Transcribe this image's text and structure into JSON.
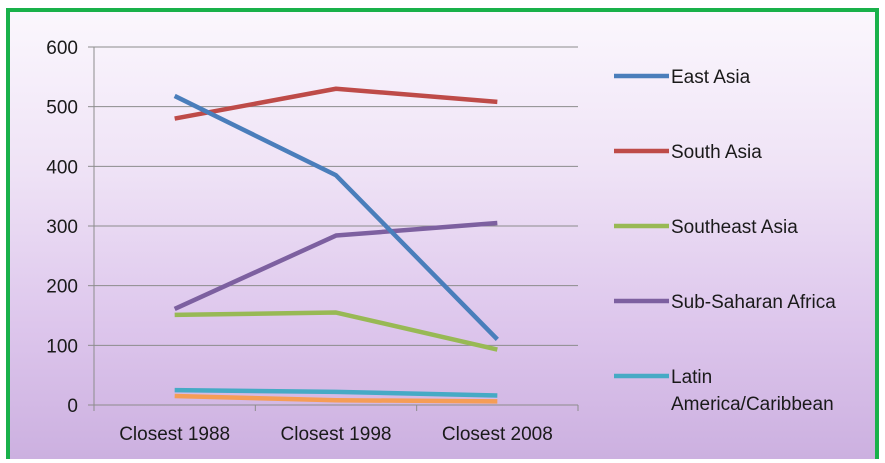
{
  "chart_data": {
    "type": "line",
    "categories": [
      "Closest 1988",
      "Closest 1998",
      "Closest 2008"
    ],
    "ylim": [
      0,
      600
    ],
    "yticks": [
      0,
      100,
      200,
      300,
      400,
      500,
      600
    ],
    "grid": true,
    "legend_position": "right",
    "series": [
      {
        "name": "East Asia",
        "color": "#4a7ebb",
        "values": [
          518,
          385,
          110
        ]
      },
      {
        "name": "South Asia",
        "color": "#be4b48",
        "values": [
          480,
          530,
          508
        ]
      },
      {
        "name": "Southeast Asia",
        "color": "#98b954",
        "values": [
          151,
          155,
          93
        ]
      },
      {
        "name": "Sub-Saharan Africa",
        "color": "#7d60a0",
        "values": [
          161,
          284,
          305
        ]
      },
      {
        "name": "Latin America/Caribbean",
        "color": "#46aac5",
        "values": [
          25,
          22,
          16
        ],
        "label_lines": [
          "Latin",
          "America/Caribbean"
        ]
      },
      {
        "name": "",
        "color": "#f59d56",
        "values": [
          15,
          8,
          6
        ]
      }
    ]
  }
}
